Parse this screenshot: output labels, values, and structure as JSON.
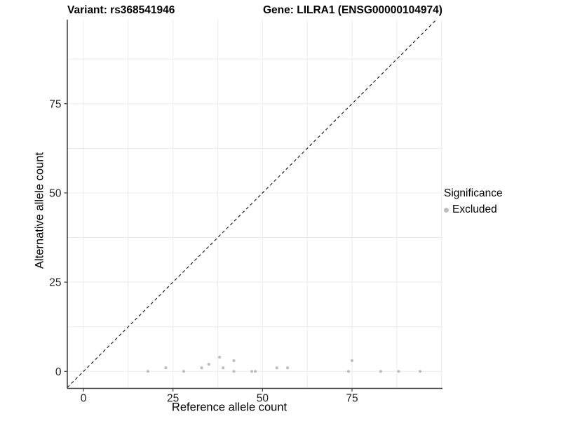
{
  "titles": {
    "variant": "Variant: rs368541946",
    "gene": "Gene: LILRA1 (ENSG00000104974)"
  },
  "chart_data": {
    "type": "scatter",
    "title": "Variant: rs368541946 | Gene: LILRA1 (ENSG00000104974)",
    "xlabel": "Reference allele count",
    "ylabel": "Alternative allele count",
    "xlim": [
      -4.5,
      100.3
    ],
    "ylim": [
      -4.75,
      98.5
    ],
    "x_ticks": [
      0,
      25,
      50,
      75
    ],
    "y_ticks": [
      0,
      25,
      50,
      75
    ],
    "grid_interval": 12.5,
    "grid_on": true,
    "identity_line": {
      "style": "dashed",
      "color": "#111111",
      "from": [
        -4.5,
        -4.5
      ],
      "to": [
        98.5,
        98.5
      ]
    },
    "legend": {
      "position": "right",
      "title": "Significance",
      "items": [
        {
          "label": "Excluded",
          "color": "#bdbdbd"
        }
      ]
    },
    "point_color": "#bdbdbd",
    "points": [
      [
        18,
        0
      ],
      [
        23,
        1
      ],
      [
        28,
        0
      ],
      [
        33,
        1
      ],
      [
        35,
        2
      ],
      [
        38,
        4
      ],
      [
        39,
        1
      ],
      [
        42,
        0
      ],
      [
        42,
        3
      ],
      [
        47,
        0
      ],
      [
        48,
        0
      ],
      [
        54,
        1
      ],
      [
        57,
        1
      ],
      [
        74,
        0
      ],
      [
        75,
        3
      ],
      [
        83,
        0
      ],
      [
        88,
        0
      ],
      [
        94,
        0
      ]
    ]
  },
  "colors": {
    "background": "#ffffff",
    "gridline": "#ececec",
    "axis_line": "#3c3c3c",
    "point": "#bdbdbd",
    "identity_line": "#111111"
  }
}
